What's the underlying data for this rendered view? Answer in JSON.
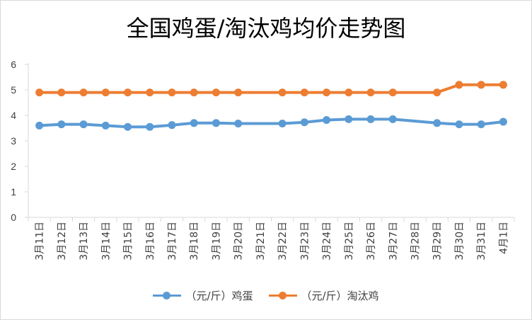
{
  "chart_data": {
    "type": "line",
    "title": "全国鸡蛋/淘汰鸡均价走势图",
    "categories": [
      "3月11日",
      "3月12日",
      "3月13日",
      "3月14日",
      "3月15日",
      "3月16日",
      "3月17日",
      "3月18日",
      "3月19日",
      "3月20日",
      "3月21日",
      "3月22日",
      "3月23日",
      "3月24日",
      "3月25日",
      "3月26日",
      "3月27日",
      "3月28日",
      "3月29日",
      "3月30日",
      "3月31日",
      "4月1日"
    ],
    "ylim": [
      0,
      6
    ],
    "yticks": [
      0,
      1,
      2,
      3,
      4,
      5,
      6
    ],
    "grid": false,
    "legend_position": "bottom",
    "series": [
      {
        "name": "（元/斤）鸡蛋",
        "color": "#5b9bd5",
        "values": [
          3.6,
          3.65,
          3.65,
          3.6,
          3.55,
          3.55,
          3.62,
          3.7,
          3.7,
          3.68,
          null,
          3.68,
          3.73,
          3.82,
          3.85,
          3.85,
          3.85,
          null,
          3.7,
          3.65,
          3.65,
          3.75
        ]
      },
      {
        "name": "（元/斤）淘汰鸡",
        "color": "#ed7d31",
        "values": [
          4.9,
          4.9,
          4.9,
          4.9,
          4.9,
          4.9,
          4.9,
          4.9,
          4.9,
          4.9,
          null,
          4.9,
          4.9,
          4.9,
          4.9,
          4.9,
          4.9,
          null,
          4.9,
          5.2,
          5.2,
          5.2
        ]
      }
    ]
  }
}
